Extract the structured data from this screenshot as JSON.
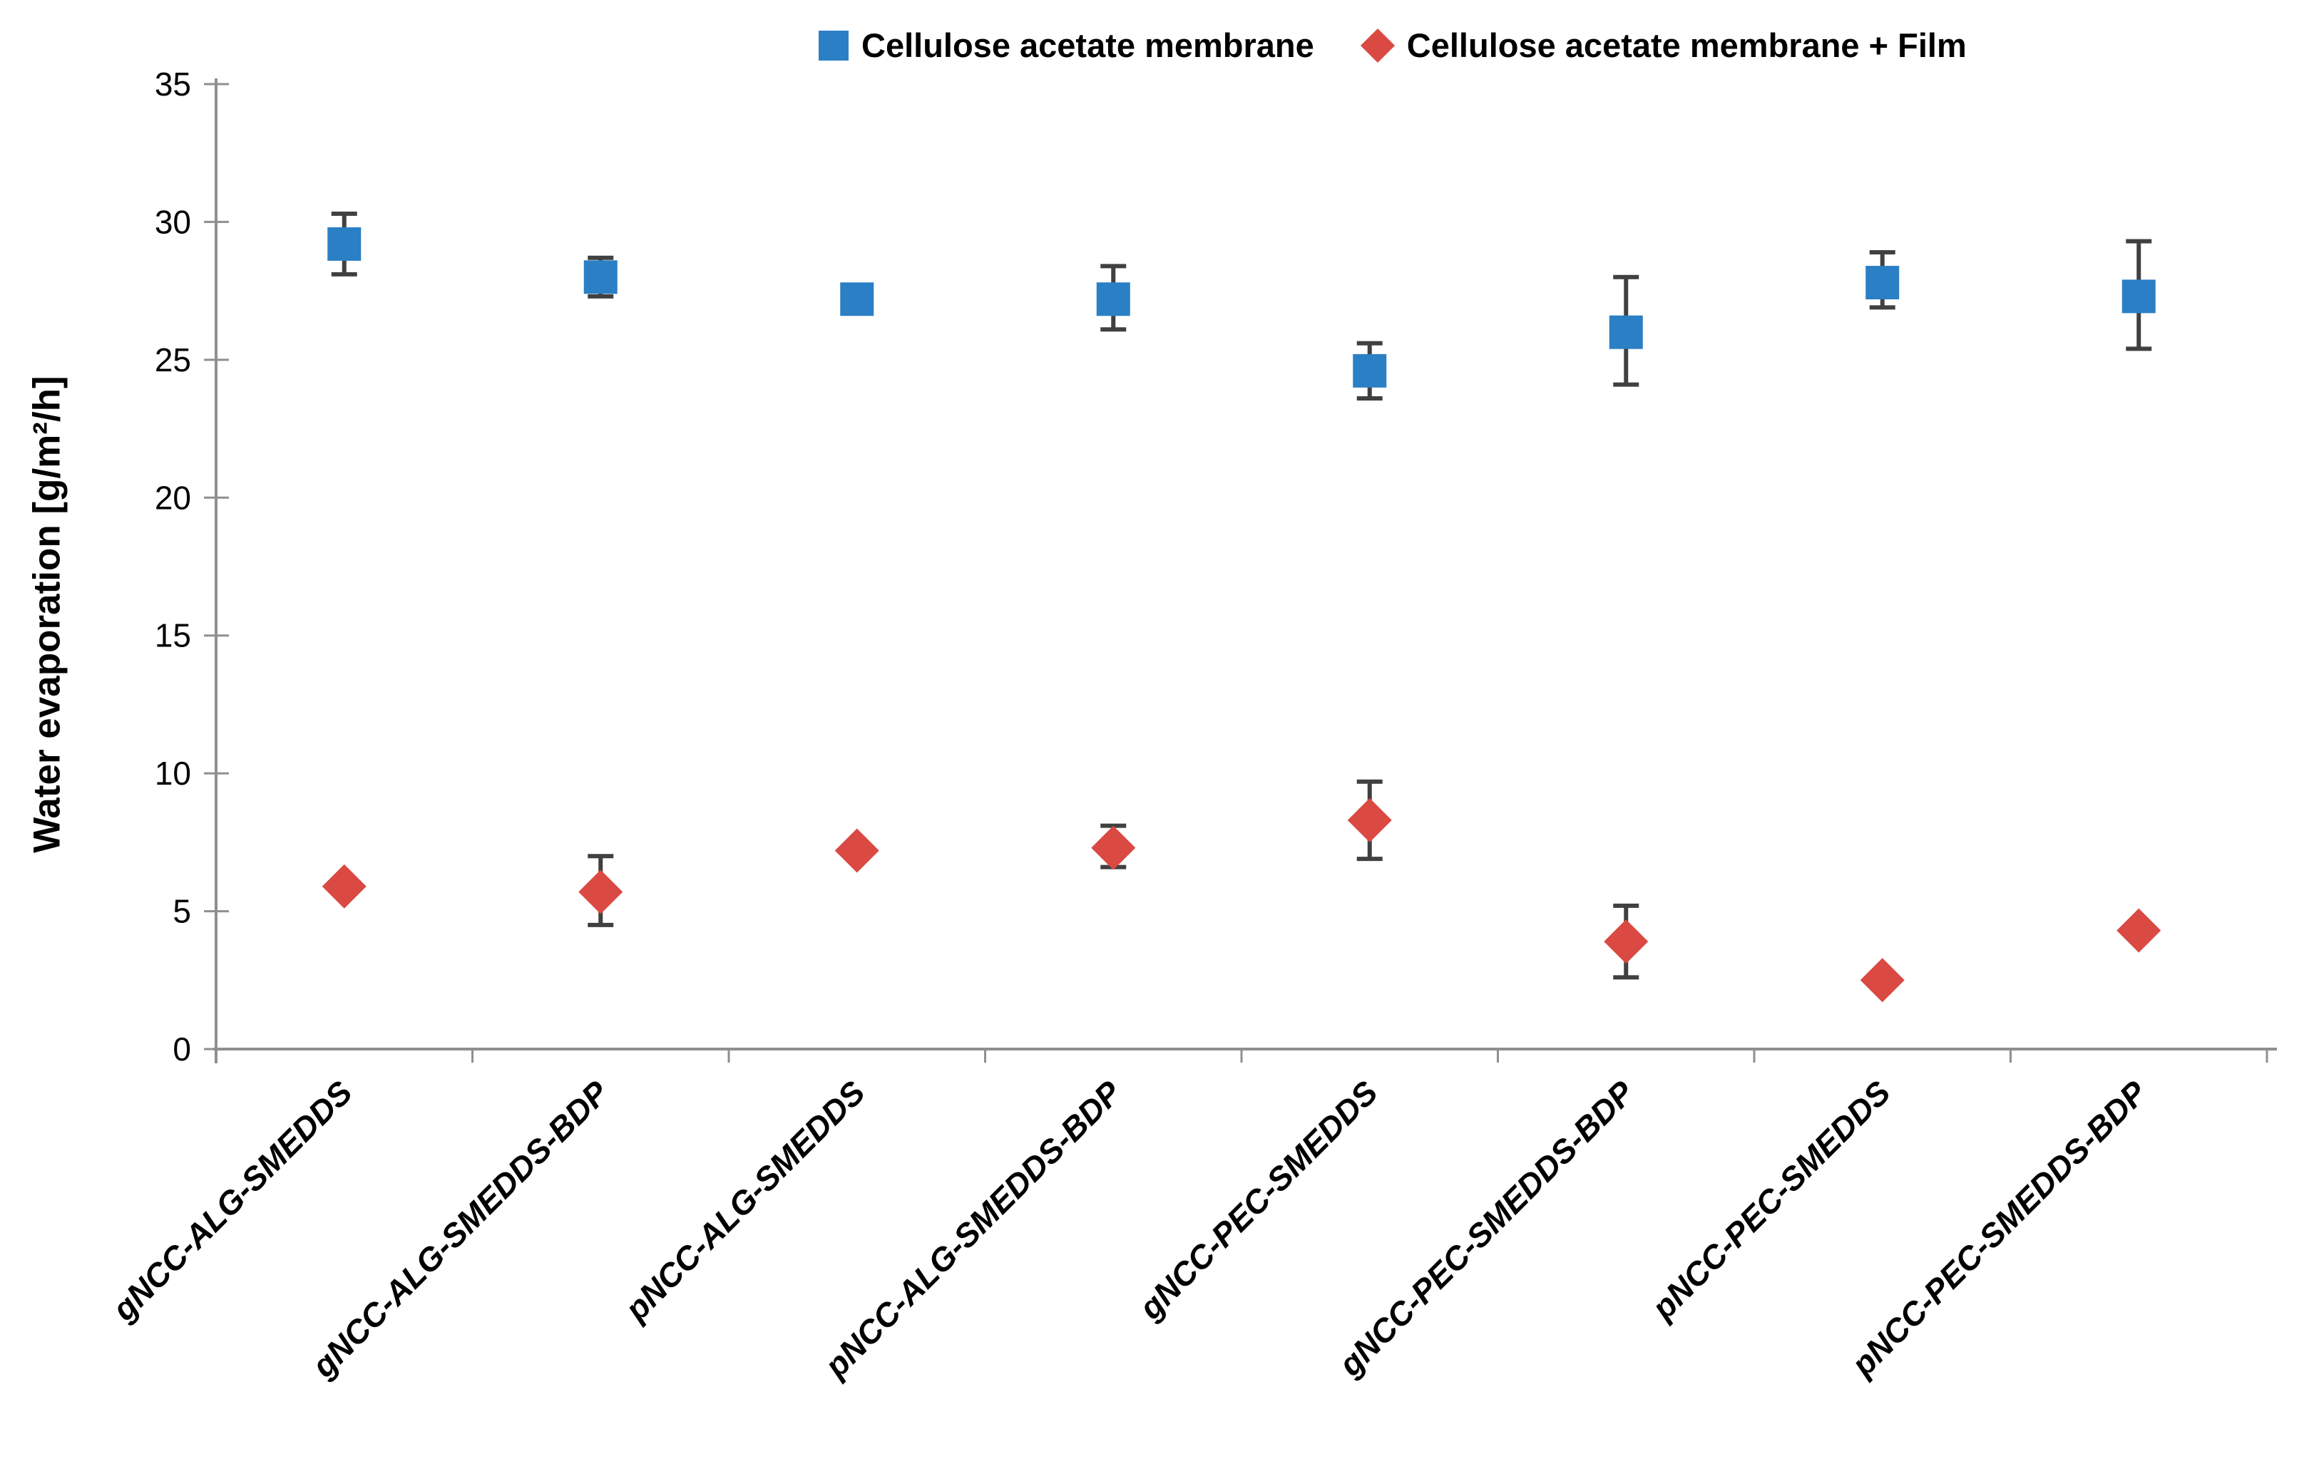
{
  "chart_data": {
    "type": "scatter",
    "title": "",
    "xlabel": "",
    "ylabel": "Water evaporation  [g/m²/h]",
    "ylim": [
      0,
      35
    ],
    "yticks": [
      0,
      5,
      10,
      15,
      20,
      25,
      30,
      35
    ],
    "grid": false,
    "legend_position": "top",
    "categories": [
      "gNCC-ALG-SMEDDS",
      "gNCC-ALG-SMEDDS-BDP",
      "pNCC-ALG-SMEDDS",
      "pNCC-ALG-SMEDDS-BDP",
      "gNCC-PEC-SMEDDS",
      "gNCC-PEC-SMEDDS-BDP",
      "pNCC-PEC-SMEDDS",
      "pNCC-PEC-SMEDDS-BDP"
    ],
    "series": [
      {
        "name": "Cellulose acetate membrane",
        "marker": "square",
        "color": "#2B7FC4",
        "values": [
          29.2,
          28.0,
          27.2,
          27.2,
          24.6,
          26.0,
          27.8,
          27.3
        ],
        "error_up": [
          1.1,
          0.7,
          0,
          1.2,
          1.0,
          2.0,
          1.1,
          2.0
        ],
        "error_down": [
          1.1,
          0.7,
          0,
          1.1,
          1.0,
          1.9,
          0.9,
          1.9
        ]
      },
      {
        "name": "Cellulose acetate membrane + Film",
        "marker": "diamond",
        "color": "#DA4942",
        "values": [
          5.9,
          5.7,
          7.2,
          7.3,
          8.3,
          3.9,
          2.5,
          4.3
        ],
        "error_up": [
          0,
          1.3,
          0,
          0.8,
          1.4,
          1.3,
          0,
          0
        ],
        "error_down": [
          0,
          1.2,
          0,
          0.7,
          1.4,
          1.3,
          0,
          0
        ]
      }
    ],
    "error_bar_color": "#404040",
    "axis_color": "#8F8F8F",
    "tick_label_color": "#000000"
  }
}
